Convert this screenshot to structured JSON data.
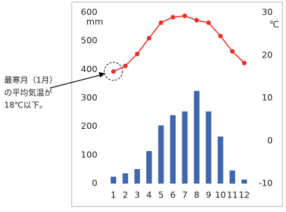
{
  "chart_data": {
    "type": "combo",
    "categories": [
      "1",
      "2",
      "3",
      "4",
      "5",
      "6",
      "7",
      "8",
      "9",
      "10",
      "11",
      "12"
    ],
    "y_label": "mm",
    "y2_label": "℃",
    "ylim": [
      0,
      600
    ],
    "yticks": [
      0,
      100,
      200,
      300,
      400,
      500,
      600
    ],
    "y2lim": [
      -10,
      30
    ],
    "y2ticks": [
      -10,
      0,
      10,
      20,
      30
    ],
    "grid": false,
    "series": [
      {
        "type": "bar",
        "color": "#3f67b0",
        "values": [
          24,
          36,
          51,
          114,
          204,
          240,
          253,
          325,
          253,
          165,
          46,
          14
        ]
      },
      {
        "type": "line",
        "axis": "y2",
        "color": "#e8302a",
        "values": [
          16.2,
          17.5,
          20.3,
          24.0,
          27.6,
          28.9,
          29.2,
          28.2,
          27.6,
          24.5,
          20.9,
          18.2
        ]
      }
    ],
    "annotation": [
      "最寒月（1月）",
      "の平均気温が",
      "18℃以下。"
    ]
  }
}
